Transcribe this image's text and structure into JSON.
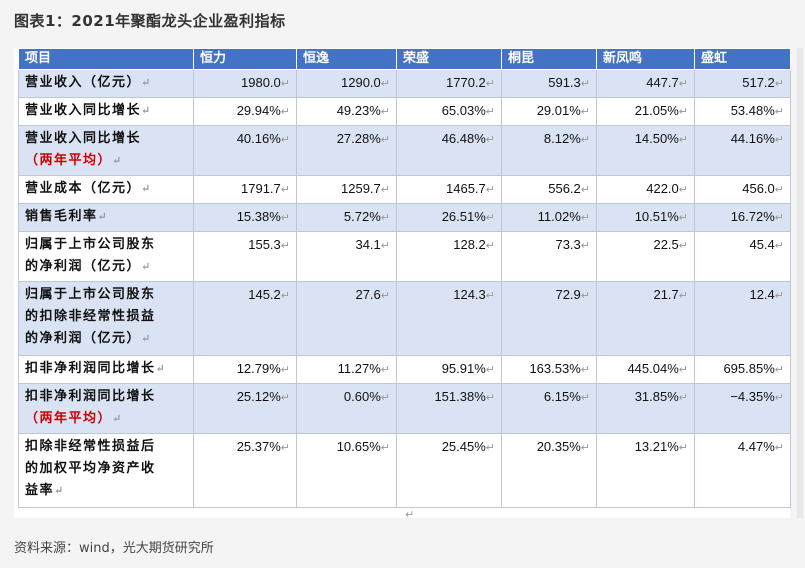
{
  "title": "图表1：2021年聚酯龙头企业盈利指标",
  "headers": [
    "项目",
    "恒力",
    "恒逸",
    "荣盛",
    "桐昆",
    "新凤鸣",
    "盛虹"
  ],
  "rows": [
    {
      "label": [
        "营业收入（亿元）"
      ],
      "values": [
        "1980.0",
        "1290.0",
        "1770.2",
        "591.3",
        "447.7",
        "517.2"
      ]
    },
    {
      "label": [
        "营业收入同比增长"
      ],
      "values": [
        "29.94%",
        "49.23%",
        "65.03%",
        "29.01%",
        "21.05%",
        "53.48%"
      ]
    },
    {
      "label": [
        "营业收入同比增长",
        "（两年平均）"
      ],
      "values": [
        "40.16%",
        "27.28%",
        "46.48%",
        "8.12%",
        "14.50%",
        "44.16%"
      ]
    },
    {
      "label": [
        "营业成本（亿元）"
      ],
      "values": [
        "1791.7",
        "1259.7",
        "1465.7",
        "556.2",
        "422.0",
        "456.0"
      ]
    },
    {
      "label": [
        "销售毛利率"
      ],
      "values": [
        "15.38%",
        "5.72%",
        "26.51%",
        "11.02%",
        "10.51%",
        "16.72%"
      ]
    },
    {
      "label": [
        "归属于上市公司股东",
        "的净利润（亿元）"
      ],
      "values": [
        "155.3",
        "34.1",
        "128.2",
        "73.3",
        "22.5",
        "45.4"
      ]
    },
    {
      "label": [
        "归属于上市公司股东",
        "的扣除非经常性损益",
        "的净利润（亿元）"
      ],
      "values": [
        "145.2",
        "27.6",
        "124.3",
        "72.9",
        "21.7",
        "12.4"
      ]
    },
    {
      "label": [
        "扣非净利润同比增长"
      ],
      "values": [
        "12.79%",
        "11.27%",
        "95.91%",
        "163.53%",
        "445.04%",
        "695.85%"
      ]
    },
    {
      "label": [
        "扣非净利润同比增长",
        "（两年平均）"
      ],
      "values": [
        "25.12%",
        "0.60%",
        "151.38%",
        "6.15%",
        "31.85%",
        "−4.35%"
      ]
    },
    {
      "label": [
        "扣除非经常性损益后",
        "的加权平均净资产收",
        "益率"
      ],
      "values": [
        "25.37%",
        "10.65%",
        "25.45%",
        "20.35%",
        "13.21%",
        "4.47%"
      ]
    }
  ],
  "source": "资料来源：wind，光大期货研究所"
}
